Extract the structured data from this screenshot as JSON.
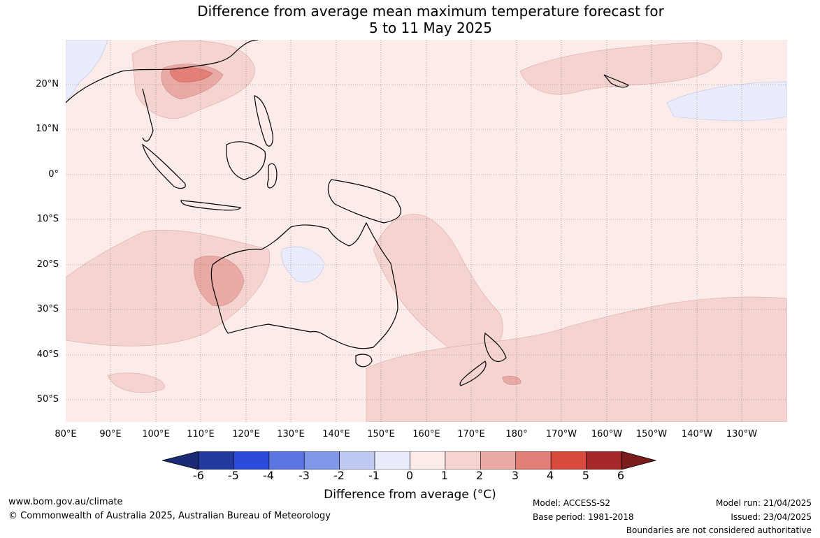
{
  "title": {
    "line1": "Difference from average mean maximum temperature forecast for",
    "line2": "5 to 11 May 2025"
  },
  "latitude_labels": [
    "20°N",
    "10°N",
    "0°",
    "10°S",
    "20°S",
    "30°S",
    "40°S",
    "50°S"
  ],
  "longitude_labels": [
    "80°E",
    "90°E",
    "100°E",
    "110°E",
    "120°E",
    "130°E",
    "140°E",
    "150°E",
    "160°E",
    "170°E",
    "180°",
    "170°W",
    "160°W",
    "150°W",
    "140°W",
    "130°W"
  ],
  "colorbar": {
    "ticks": [
      "-6",
      "-5",
      "-4",
      "-3",
      "-2",
      "-1",
      "0",
      "1",
      "2",
      "3",
      "4",
      "5",
      "6"
    ],
    "colors": [
      "#223a9e",
      "#2c4bd8",
      "#5a74e0",
      "#8096e8",
      "#c0c9f2",
      "#e9ecfb",
      "#fbecea",
      "#f4d3d0",
      "#e9aaa5",
      "#e28078",
      "#d74a3c",
      "#a6282a"
    ],
    "low_extend_color": "#1a2a74",
    "high_extend_color": "#7a1c1c",
    "label": "Difference from average (°C)"
  },
  "footer": {
    "website": "www.bom.gov.au/climate",
    "copyright": "© Commonwealth of Australia 2025, Australian Bureau of Meteorology",
    "model": "Model: ACCESS-S2",
    "base_period": "Base period: 1981-2018",
    "model_run": "Model run: 21/04/2025",
    "issued": "Issued: 23/04/2025",
    "disclaimer": "Boundaries are not considered authoritative"
  }
}
